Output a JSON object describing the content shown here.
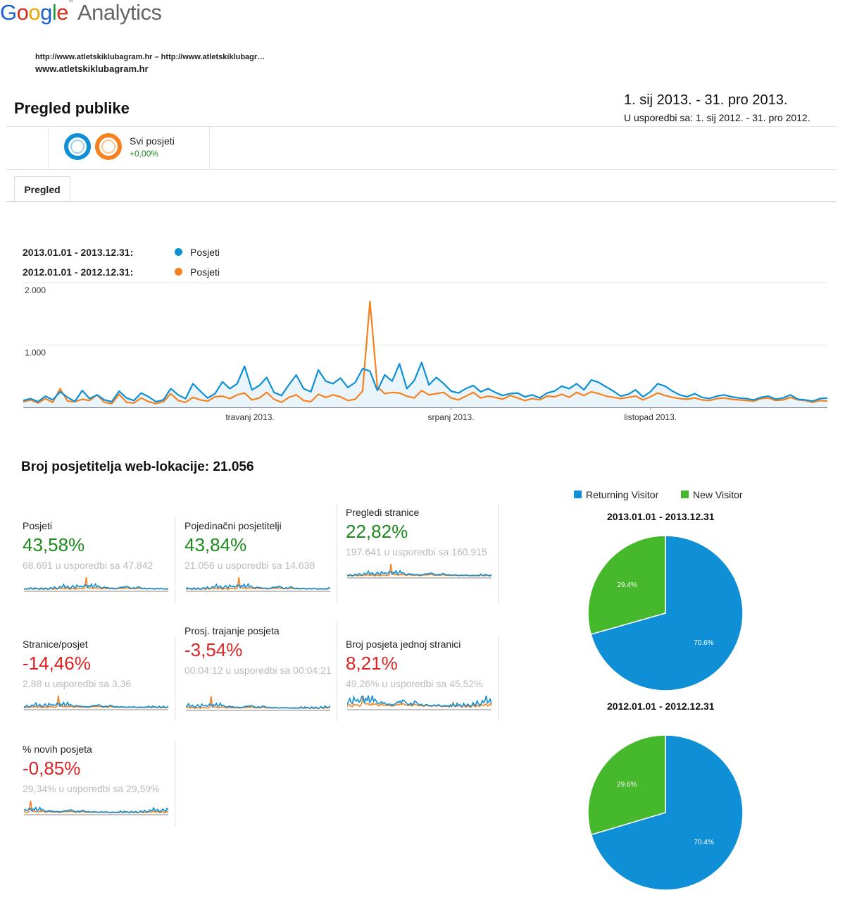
{
  "brand": {
    "logo": "Google",
    "product": "Analytics"
  },
  "property": {
    "urls": "http://www.atletskiklubagram.hr – http://www.atletskiklubagr…",
    "name": "www.atletskiklubagram.hr"
  },
  "page": {
    "title": "Pregled publike",
    "date_range": "1. sij 2013. - 31. pro 2013.",
    "compare_range": "U usporedbi sa: 1. sij 2012. - 31. pro 2012."
  },
  "segment": {
    "name": "Svi posjeti",
    "delta": "+0,00%"
  },
  "tabs": [
    {
      "label": "Pregled"
    }
  ],
  "colors": {
    "current": "#0f8fd6",
    "previous": "#f5821f",
    "positive": "#1c8a1c",
    "negative": "#dd2222",
    "new_visitor": "#46b82c"
  },
  "chart_legend": [
    {
      "period": "2013.01.01 - 2013.12.31:",
      "series": "Posjeti"
    },
    {
      "period": "2012.01.01 - 2012.12.31:",
      "series": "Posjeti"
    }
  ],
  "visitors_heading": "Broj posjetitelja web-lokacije: 21.056",
  "metrics": [
    {
      "name": "Posjeti",
      "value": "43,58%",
      "comparison": "68.691 u usporedbi sa 47.842",
      "trend": "positive"
    },
    {
      "name": "Pojedinačni posjetitelji",
      "value": "43,84%",
      "comparison": "21.056 u usporedbi sa 14.638",
      "trend": "positive"
    },
    {
      "name": "Pregledi stranice",
      "value": "22,82%",
      "comparison": "197.641 u usporedbi sa 160.915",
      "trend": "positive"
    },
    {
      "name": "Stranice/posjet",
      "value": "-14,46%",
      "comparison": "2,88 u usporedbi sa 3,36",
      "trend": "negative"
    },
    {
      "name": "Prosj. trajanje posjeta",
      "value": "-3,54%",
      "comparison": "00:04:12 u usporedbi sa 00:04:21",
      "trend": "negative"
    },
    {
      "name": "Broj posjeta jednoj stranici",
      "value": "8,21%",
      "comparison": "49,26% u usporedbi sa 45,52%",
      "trend": "negative"
    },
    {
      "name": "% novih posjeta",
      "value": "-0,85%",
      "comparison": "29,34% u usporedbi sa 29,59%",
      "trend": "negative"
    }
  ],
  "chart_data": [
    {
      "type": "line",
      "x_tick_labels": [
        "travanj 2013.",
        "srpanj 2013.",
        "listopad 2013."
      ],
      "y_tick_labels": [
        "2.000",
        "1.000"
      ],
      "ylim": [
        0,
        2000
      ],
      "grid": true,
      "series": [
        {
          "name": "Posjeti",
          "period": "2013.01.01 - 2013.12.31",
          "color": "#0f8fd6",
          "values": [
            110,
            140,
            90,
            180,
            120,
            250,
            160,
            95,
            270,
            140,
            200,
            120,
            90,
            260,
            150,
            110,
            230,
            170,
            90,
            120,
            300,
            200,
            140,
            380,
            260,
            150,
            220,
            410,
            300,
            380,
            660,
            280,
            350,
            480,
            240,
            190,
            360,
            520,
            300,
            250,
            600,
            420,
            380,
            470,
            320,
            400,
            620,
            580,
            270,
            520,
            420,
            700,
            300,
            430,
            720,
            360,
            480,
            380,
            260,
            230,
            300,
            350,
            250,
            300,
            240,
            190,
            220,
            230,
            170,
            200,
            150,
            230,
            260,
            340,
            300,
            380,
            280,
            440,
            400,
            330,
            260,
            180,
            210,
            280,
            170,
            250,
            380,
            340,
            260,
            200,
            170,
            220,
            160,
            140,
            180,
            200,
            170,
            150,
            140,
            120,
            160,
            180,
            130,
            150,
            200,
            130,
            120,
            100,
            140,
            150
          ]
        },
        {
          "name": "Posjeti",
          "period": "2012.01.01 - 2012.12.31",
          "color": "#f5821f",
          "values": [
            90,
            120,
            70,
            140,
            80,
            300,
            100,
            90,
            130,
            110,
            200,
            80,
            60,
            210,
            80,
            70,
            150,
            90,
            60,
            90,
            220,
            110,
            80,
            160,
            120,
            100,
            170,
            180,
            140,
            200,
            230,
            120,
            150,
            240,
            130,
            80,
            160,
            200,
            110,
            90,
            210,
            160,
            200,
            170,
            110,
            130,
            260,
            1700,
            330,
            220,
            240,
            230,
            180,
            150,
            270,
            200,
            220,
            240,
            150,
            120,
            180,
            240,
            150,
            180,
            160,
            130,
            190,
            150,
            110,
            140,
            120,
            180,
            170,
            210,
            160,
            240,
            190,
            250,
            220,
            180,
            160,
            140,
            160,
            180,
            120,
            170,
            230,
            190,
            160,
            140,
            130,
            150,
            120,
            110,
            140,
            150,
            130,
            120,
            110,
            100,
            140,
            150,
            110,
            120,
            160,
            120,
            110,
            80,
            110,
            100
          ]
        }
      ]
    },
    {
      "type": "pie",
      "title": "2013.01.01 - 2013.12.31",
      "slices": [
        {
          "label": "Returning Visitor",
          "value": 70.6,
          "color": "#0f8fd6",
          "text": "70.6%"
        },
        {
          "label": "New Visitor",
          "value": 29.4,
          "color": "#46b82c",
          "text": "29.4%"
        }
      ]
    },
    {
      "type": "pie",
      "title": "2012.01.01 - 2012.12.31",
      "slices": [
        {
          "label": "Returning Visitor",
          "value": 70.4,
          "color": "#0f8fd6",
          "text": "70.4%"
        },
        {
          "label": "New Visitor",
          "value": 29.6,
          "color": "#46b82c",
          "text": "29.6%"
        }
      ]
    }
  ],
  "pie_legend": [
    {
      "label": "Returning Visitor",
      "color": "#0f8fd6"
    },
    {
      "label": "New Visitor",
      "color": "#46b82c"
    }
  ]
}
